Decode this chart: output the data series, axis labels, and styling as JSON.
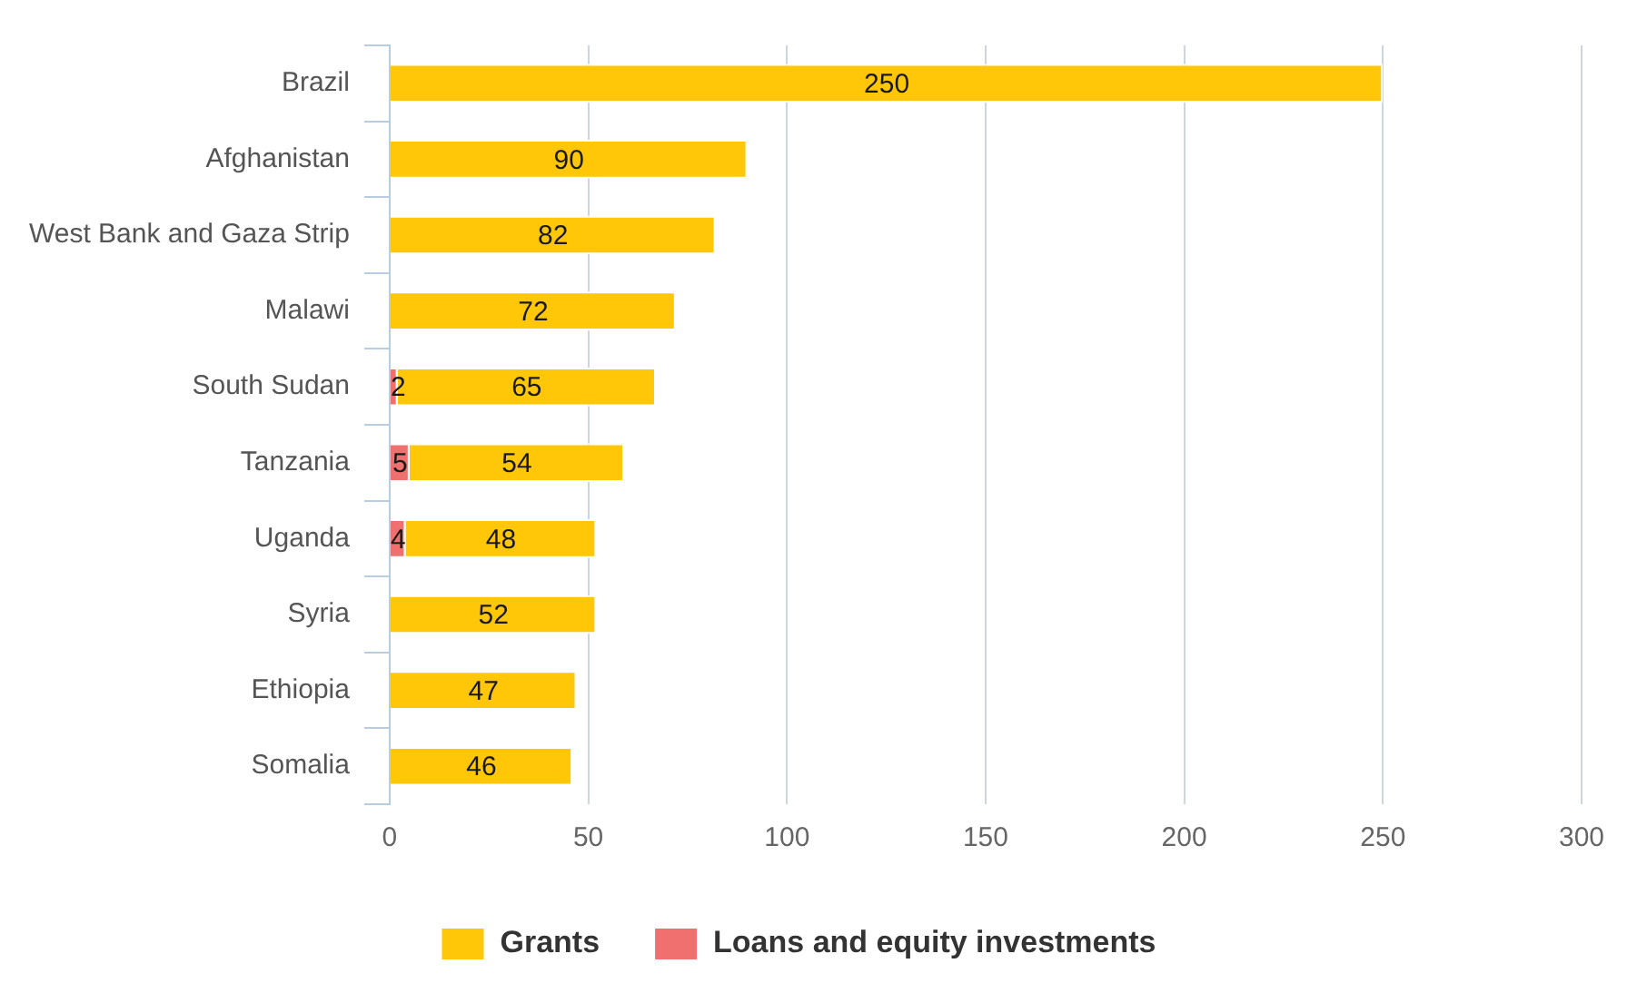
{
  "chart_data": {
    "type": "bar",
    "orientation": "horizontal",
    "stacked": true,
    "categories": [
      "Brazil",
      "Afghanistan",
      "West Bank and Gaza Strip",
      "Malawi",
      "South Sudan",
      "Tanzania",
      "Uganda",
      "Syria",
      "Ethiopia",
      "Somalia"
    ],
    "series": [
      {
        "name": "Loans and equity investments",
        "color": "#f07070",
        "values": [
          null,
          null,
          null,
          null,
          2,
          5,
          4,
          null,
          null,
          null
        ]
      },
      {
        "name": "Grants",
        "color": "#ffc708",
        "values": [
          250,
          90,
          82,
          72,
          65,
          54,
          48,
          52,
          47,
          46
        ]
      }
    ],
    "xlim": [
      0,
      300
    ],
    "xticks": [
      0,
      50,
      100,
      150,
      200,
      250,
      300
    ],
    "grid": "x",
    "legend": "bottom",
    "data_labels": true
  }
}
